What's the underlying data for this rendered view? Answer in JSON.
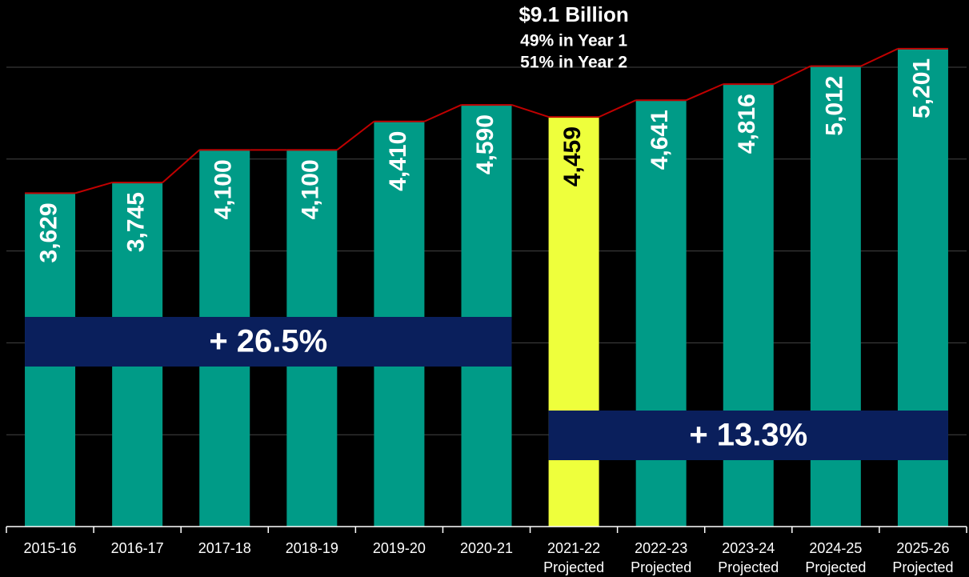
{
  "chart_data": {
    "type": "bar",
    "categories": [
      "2015-16",
      "2016-17",
      "2017-18",
      "2018-19",
      "2019-20",
      "2020-21",
      "2021-22",
      "2022-23",
      "2023-24",
      "2024-25",
      "2025-26"
    ],
    "category_notes": [
      null,
      null,
      null,
      null,
      null,
      null,
      "Projected",
      "Projected",
      "Projected",
      "Projected",
      "Projected"
    ],
    "values": [
      3629,
      3745,
      4100,
      4100,
      4410,
      4590,
      4459,
      4641,
      4816,
      5012,
      5201
    ],
    "value_labels": [
      "3,629",
      "3,745",
      "4,100",
      "4,100",
      "4,410",
      "4,590",
      "4,459",
      "4,641",
      "4,816",
      "5,012",
      "5,201"
    ],
    "color": "#009b87",
    "highlight_color": "#eeff3c",
    "highlight_index": 6,
    "line_color": "#c00000",
    "ylim": [
      0,
      5000
    ],
    "yticks": [
      0,
      1000,
      2000,
      3000,
      4000,
      5000
    ],
    "grid": true,
    "annotations": [
      {
        "text": "$9.1 Billion",
        "lines": [
          "49% in Year 1",
          "51% in Year 2"
        ]
      },
      {
        "text": "+ 26.5%",
        "from": 0,
        "to": 5
      },
      {
        "text": "+ 13.3%",
        "from": 6,
        "to": 10
      }
    ],
    "band_color": "#0a1f5c"
  }
}
